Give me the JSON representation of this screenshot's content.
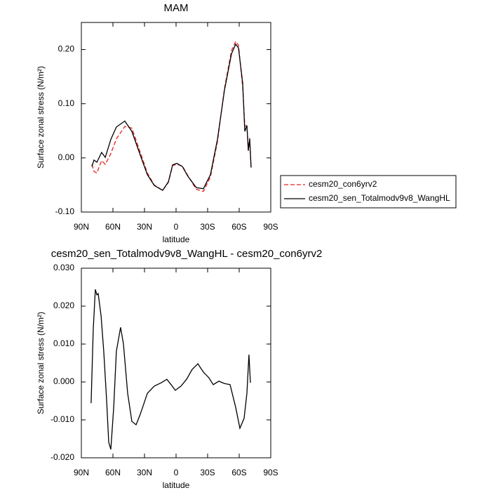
{
  "chart_data": [
    {
      "type": "line",
      "title": "MAM",
      "xlabel": "latitude",
      "ylabel": "Surface zonal stress (N/m²)",
      "xlim": [
        90,
        -90
      ],
      "xticks": [
        {
          "value": 90,
          "label": "90N"
        },
        {
          "value": 60,
          "label": "60N"
        },
        {
          "value": 30,
          "label": "30N"
        },
        0,
        {
          "value": -30,
          "label": "30S"
        },
        {
          "value": -60,
          "label": "60S"
        },
        {
          "value": -90,
          "label": "90S"
        }
      ],
      "ylim": [
        -0.1,
        0.25
      ],
      "yticks": [
        {
          "value": -0.1,
          "label": "-0.10"
        },
        {
          "value": 0,
          "label": "0.00"
        },
        {
          "value": 0.1,
          "label": "0.10"
        },
        {
          "value": 0.2,
          "label": "0.20"
        }
      ],
      "legend": "right",
      "x": [
        80,
        78,
        75.3,
        70.7,
        67.3,
        62,
        56.7,
        48.7,
        42,
        34,
        27.3,
        20.7,
        12.7,
        7.3,
        3.3,
        -0.7,
        -6,
        -11.3,
        -19.3,
        -26,
        -32.7,
        -39.3,
        -46,
        -52.7,
        -56.7,
        -59.3,
        -63.3,
        -65.3,
        -67.3,
        -68.7,
        -70,
        -71.3
      ],
      "series": [
        {
          "name": "cesm20_con6yrv2",
          "color": "#e8201c",
          "dash": true,
          "values": [
            -0.012,
            -0.025,
            -0.028,
            -0.005,
            -0.012,
            0.008,
            0.035,
            0.058,
            0.055,
            0.01,
            -0.028,
            -0.05,
            -0.06,
            -0.045,
            -0.014,
            -0.012,
            -0.015,
            -0.033,
            -0.058,
            -0.062,
            -0.035,
            0.03,
            0.128,
            0.198,
            0.215,
            0.208,
            0.13,
            0.06,
            0.058,
            0.02,
            0.03,
            -0.018
          ]
        },
        {
          "name": "cesm20_sen_Totalmodv9v8_WangHL",
          "color": "#000000",
          "dash": false,
          "values": [
            -0.016,
            -0.004,
            -0.008,
            0.01,
            0.001,
            0.034,
            0.057,
            0.068,
            0.049,
            0.005,
            -0.031,
            -0.051,
            -0.06,
            -0.044,
            -0.013,
            -0.01,
            -0.016,
            -0.034,
            -0.055,
            -0.057,
            -0.031,
            0.034,
            0.125,
            0.192,
            0.21,
            0.203,
            0.138,
            0.049,
            0.06,
            0.013,
            0.036,
            -0.018
          ]
        }
      ]
    },
    {
      "type": "line",
      "title": "cesm20_sen_Totalmodv9v8_WangHL - cesm20_con6yrv2",
      "xlabel": "latitude",
      "ylabel": "Surface zonal stress (N/m²)",
      "xlim": [
        90,
        -90
      ],
      "xticks": [
        {
          "value": 90,
          "label": "90N"
        },
        {
          "value": 60,
          "label": "60N"
        },
        {
          "value": 30,
          "label": "30N"
        },
        0,
        {
          "value": -30,
          "label": "30S"
        },
        {
          "value": -60,
          "label": "60S"
        },
        {
          "value": -90,
          "label": "90S"
        }
      ],
      "ylim": [
        -0.02,
        0.03
      ],
      "yticks": [
        {
          "value": -0.02,
          "label": "-0.020"
        },
        {
          "value": -0.01,
          "label": "-0.010"
        },
        {
          "value": 0,
          "label": "0.000"
        },
        {
          "value": 0.01,
          "label": "0.010"
        },
        {
          "value": 0.02,
          "label": "0.020"
        },
        {
          "value": 0.03,
          "label": "0.030"
        }
      ],
      "x": [
        80.7,
        78.7,
        76.7,
        75.3,
        74,
        71.3,
        68.7,
        66,
        64,
        62,
        59.3,
        56.7,
        52.7,
        50,
        46,
        42,
        38,
        34,
        27.3,
        20.7,
        14,
        8.7,
        4.7,
        0.7,
        -4.7,
        -10,
        -15.3,
        -20.7,
        -26,
        -31.3,
        -35.3,
        -40.7,
        -46,
        -51.3,
        -56.7,
        -60.7,
        -64.7,
        -67.3,
        -69.3,
        -70.7
      ],
      "series": [
        {
          "color": "#000000",
          "dash": false,
          "values": [
            -0.0056,
            0.0137,
            0.0244,
            0.023,
            0.0233,
            0.0174,
            0.0081,
            -0.0048,
            -0.0159,
            -0.0178,
            -0.0067,
            0.0081,
            0.0144,
            0.01,
            -0.003,
            -0.0104,
            -0.0113,
            -0.0085,
            -0.003,
            -0.0011,
            -0.0002,
            0.0007,
            -0.0007,
            -0.0022,
            -0.0011,
            0.0007,
            0.0033,
            0.0048,
            0.0026,
            0.0011,
            -0.0007,
            0.0002,
            -0.0004,
            -0.0007,
            -0.0067,
            -0.0122,
            -0.0096,
            -0.003,
            0.0072,
            -0.0002
          ]
        }
      ]
    }
  ]
}
